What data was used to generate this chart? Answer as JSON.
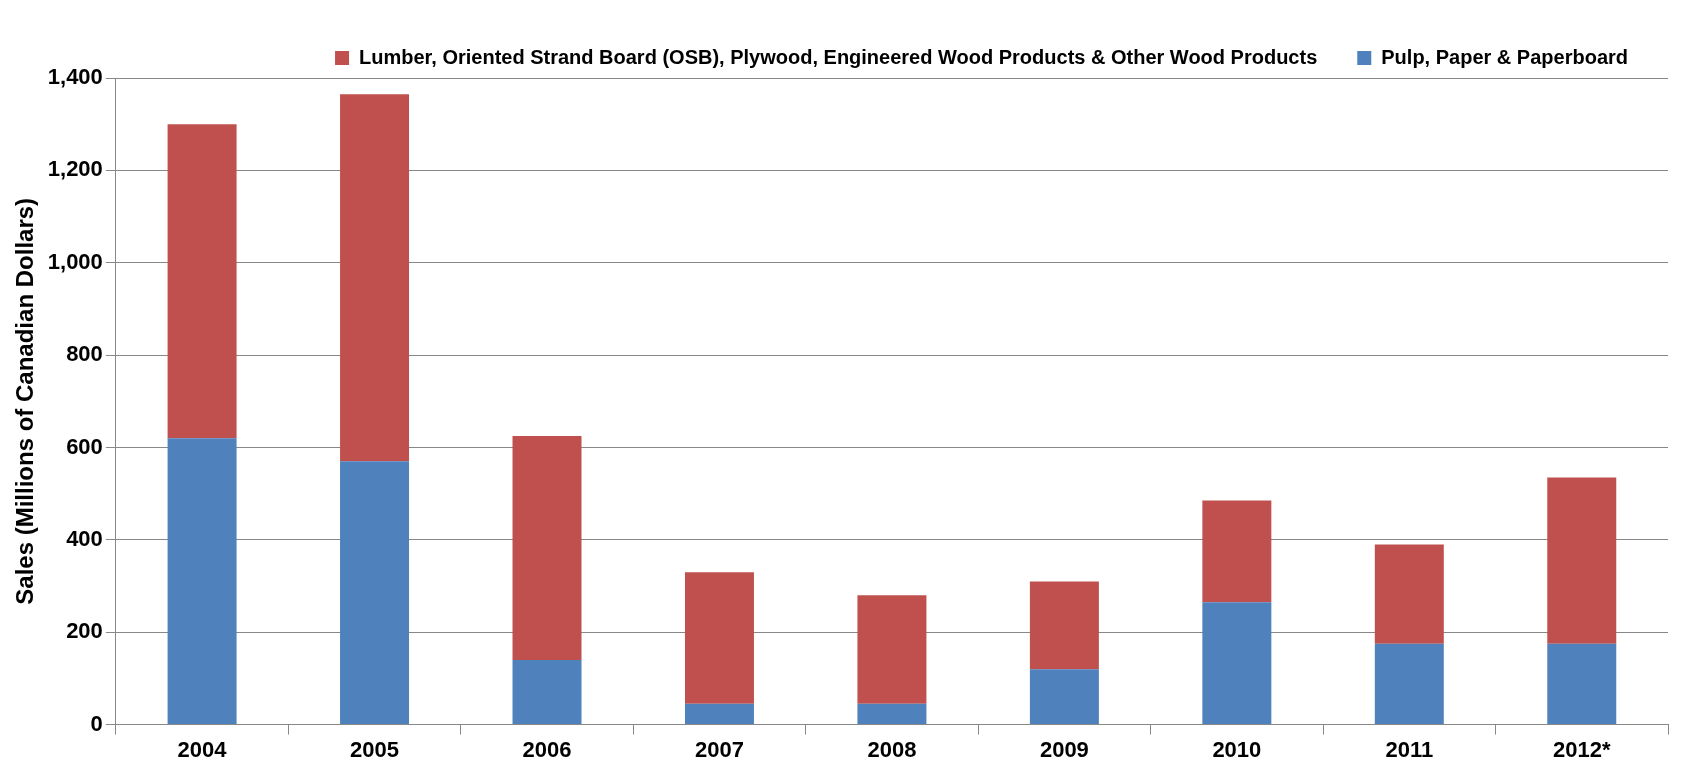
{
  "chart_data": {
    "type": "bar",
    "ylabel": "Sales (Millions of Canadian Dollars)",
    "categories": [
      "2004",
      "2005",
      "2006",
      "2007",
      "2008",
      "2009",
      "2010",
      "2011",
      "2012*"
    ],
    "series": [
      {
        "name": "Pulp, Paper & Paperboard",
        "color": "#4f81bd",
        "values": [
          620,
          570,
          140,
          45,
          45,
          120,
          265,
          175,
          175
        ]
      },
      {
        "name": "Lumber, Oriented Strand Board (OSB), Plywood, Engineered Wood Products & Other Wood Products",
        "color": "#c0504d",
        "values": [
          680,
          795,
          485,
          285,
          235,
          190,
          220,
          215,
          360
        ]
      }
    ],
    "stacked": true,
    "ylim": [
      0,
      1400
    ],
    "yticks": [
      0,
      200,
      400,
      600,
      800,
      {
        "value": 1000,
        "label": "1,000"
      },
      {
        "value": 1200,
        "label": "1,200"
      },
      {
        "value": 1400,
        "label": "1,400"
      }
    ],
    "grid": "y",
    "legend": "top right"
  }
}
